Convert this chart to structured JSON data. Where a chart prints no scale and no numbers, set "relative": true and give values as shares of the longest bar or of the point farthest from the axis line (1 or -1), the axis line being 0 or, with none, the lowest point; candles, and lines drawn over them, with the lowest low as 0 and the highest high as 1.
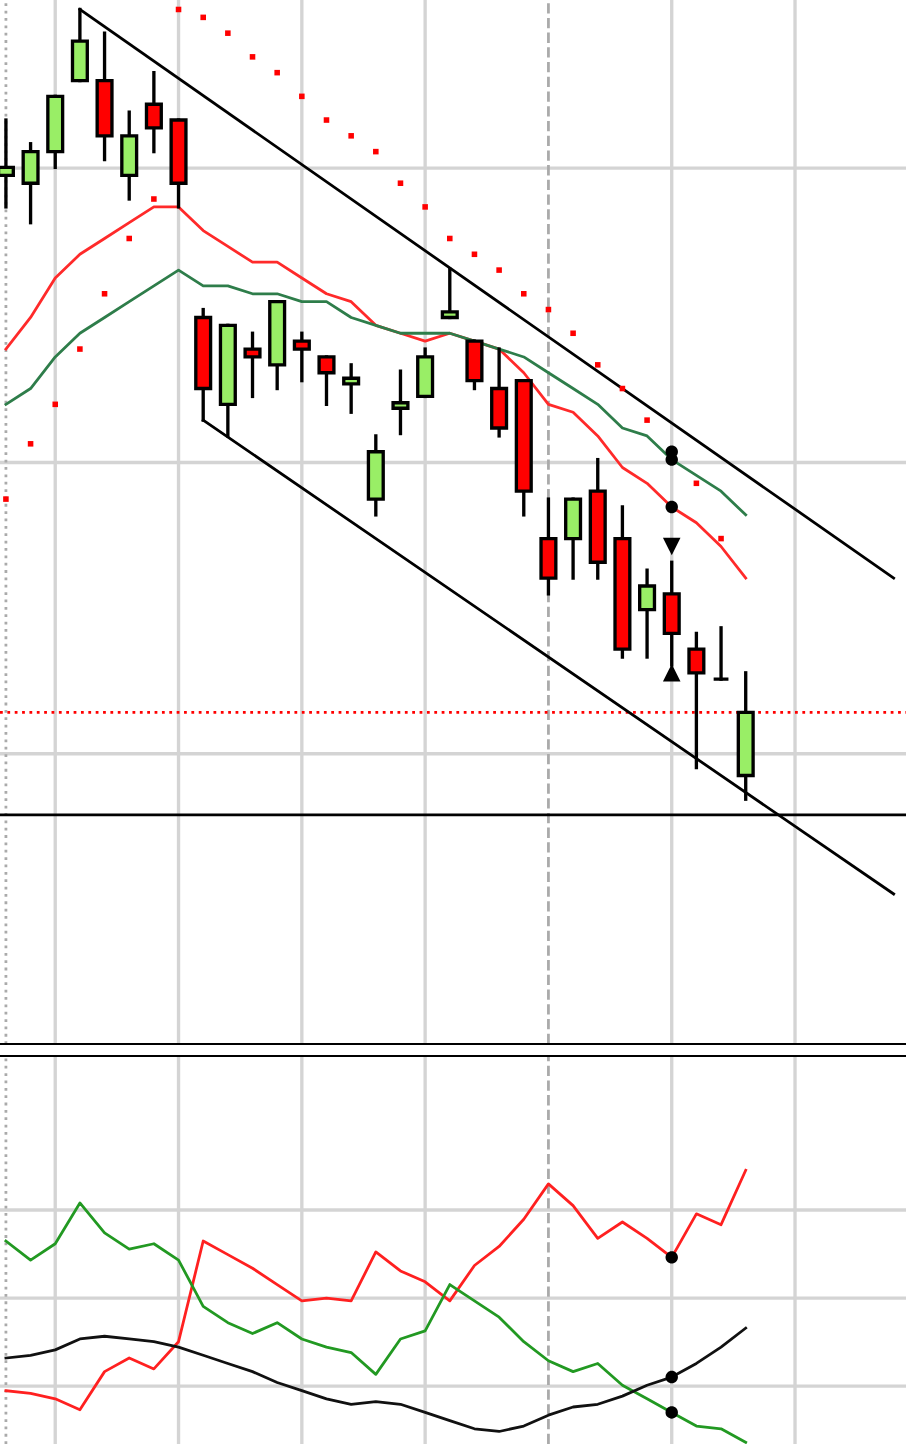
{
  "chart_data": [
    {
      "type": "candlestick",
      "relative": true,
      "grid": true,
      "categories": [
        null,
        null,
        null,
        null,
        null,
        null,
        null,
        null,
        null,
        null,
        null,
        null,
        null,
        null,
        null,
        null,
        null,
        null,
        null,
        null,
        null,
        null,
        null,
        null,
        null,
        null,
        null,
        null,
        null,
        null,
        null,
        null,
        null,
        null,
        null,
        null,
        null
      ],
      "ohlc": [
        [
          0.79,
          0.86,
          0.75,
          0.8
        ],
        [
          0.78,
          0.83,
          0.73,
          0.82
        ],
        [
          0.82,
          0.89,
          0.8,
          0.89
        ],
        [
          0.91,
          1.0,
          0.91,
          0.96
        ],
        [
          0.91,
          0.97,
          0.81,
          0.84
        ],
        [
          0.79,
          0.87,
          0.76,
          0.84
        ],
        [
          0.88,
          0.92,
          0.82,
          0.85
        ],
        [
          0.86,
          0.86,
          0.75,
          0.78
        ],
        [
          0.61,
          0.62,
          0.48,
          0.52
        ],
        [
          0.5,
          0.6,
          0.46,
          0.6
        ],
        [
          0.57,
          0.59,
          0.51,
          0.56
        ],
        [
          0.55,
          0.63,
          0.52,
          0.63
        ],
        [
          0.58,
          0.59,
          0.53,
          0.57
        ],
        [
          0.56,
          0.56,
          0.5,
          0.54
        ],
        [
          0.526,
          0.55,
          0.49,
          0.533
        ],
        [
          0.38,
          0.46,
          0.36,
          0.44
        ],
        [
          0.495,
          0.542,
          0.463,
          0.502
        ],
        [
          0.51,
          0.57,
          0.51,
          0.56
        ],
        [
          0.61,
          0.671,
          0.61,
          0.617
        ],
        [
          0.58,
          0.58,
          0.52,
          0.53
        ],
        [
          0.52,
          0.57,
          0.46,
          0.47
        ],
        [
          0.53,
          0.53,
          0.36,
          0.39
        ],
        [
          0.33,
          0.38,
          0.26,
          0.28
        ],
        [
          0.33,
          0.38,
          0.28,
          0.38
        ],
        [
          0.39,
          0.43,
          0.28,
          0.3
        ],
        [
          0.33,
          0.37,
          0.18,
          0.19
        ],
        [
          0.24,
          0.29,
          0.18,
          0.27
        ],
        [
          0.26,
          0.3,
          0.17,
          0.21
        ],
        [
          0.19,
          0.21,
          0.04,
          0.16
        ],
        [
          0.152,
          0.217,
          0.152,
          0.152
        ],
        [
          0.03,
          0.16,
          0.0,
          0.11
        ],
        null,
        null,
        null,
        null,
        null,
        null
      ],
      "colors": [
        "#99ee66",
        "#99ee66",
        "#99ee66",
        "#99ee66",
        "#ff0000",
        "#99ee66",
        "#ff0000",
        "#ff0000",
        "#ff0000",
        "#99ee66",
        "#ff0000",
        "#99ee66",
        "#ff0000",
        "#ff0000",
        "#99ee66",
        "#99ee66",
        "#99ee66",
        "#99ee66",
        "#99ee66",
        "#ff0000",
        "#ff0000",
        "#ff0000",
        "#ff0000",
        "#99ee66",
        "#ff0000",
        "#ff0000",
        "#99ee66",
        "#ff0000",
        "#ff0000",
        "#000000",
        "#99ee66",
        null,
        null,
        null,
        null,
        null,
        null
      ],
      "series": [
        {
          "type": "line",
          "color": "#ff2a2a",
          "values": [
            0.57,
            0.61,
            0.66,
            0.69,
            0.71,
            0.73,
            0.75,
            0.75,
            0.72,
            0.7,
            0.68,
            0.68,
            0.66,
            0.64,
            0.63,
            0.6,
            0.59,
            0.58,
            0.59,
            0.58,
            0.57,
            0.54,
            0.5,
            0.49,
            0.46,
            0.42,
            0.4,
            0.37,
            0.35,
            0.32,
            0.28,
            null,
            null,
            null,
            null,
            null,
            null
          ]
        },
        {
          "type": "line",
          "color": "#2e7d4a",
          "values": [
            0.5,
            0.52,
            0.56,
            0.59,
            0.61,
            0.63,
            0.65,
            0.67,
            0.65,
            0.65,
            0.64,
            0.64,
            0.63,
            0.63,
            0.61,
            0.6,
            0.59,
            0.59,
            0.59,
            0.58,
            0.57,
            0.56,
            0.54,
            0.52,
            0.5,
            0.47,
            0.46,
            0.43,
            0.41,
            0.39,
            0.36,
            null,
            null,
            null,
            null,
            null,
            null
          ]
        },
        {
          "type": "scatter",
          "color": "#ff0000",
          "marker": "square",
          "values": [
            0.38,
            0.45,
            0.5,
            0.57,
            0.64,
            0.71,
            0.76,
            1.0,
            0.99,
            0.97,
            0.94,
            0.92,
            0.89,
            0.86,
            0.84,
            0.82,
            0.78,
            0.75,
            0.71,
            0.69,
            0.67,
            0.64,
            0.62,
            0.59,
            0.55,
            0.52,
            0.48,
            null,
            0.4,
            0.33,
            null,
            null,
            null,
            null,
            null,
            null,
            null
          ]
        },
        {
          "type": "scatter",
          "color": "#000000",
          "marker": "circle",
          "values": [
            null,
            null,
            null,
            null,
            null,
            null,
            null,
            null,
            null,
            null,
            null,
            null,
            null,
            null,
            null,
            null,
            null,
            null,
            null,
            null,
            null,
            null,
            null,
            null,
            null,
            null,
            null,
            0.44,
            null,
            null,
            null,
            null,
            null,
            null,
            null,
            null,
            null
          ]
        },
        {
          "type": "scatter",
          "color": "#000000",
          "marker": "circle",
          "values": [
            null,
            null,
            null,
            null,
            null,
            null,
            null,
            null,
            null,
            null,
            null,
            null,
            null,
            null,
            null,
            null,
            null,
            null,
            null,
            null,
            null,
            null,
            null,
            null,
            null,
            null,
            null,
            0.43,
            null,
            null,
            null,
            null,
            null,
            null,
            null,
            null,
            null
          ]
        },
        {
          "type": "scatter",
          "color": "#000000",
          "marker": "circle",
          "values": [
            null,
            null,
            null,
            null,
            null,
            null,
            null,
            null,
            null,
            null,
            null,
            null,
            null,
            null,
            null,
            null,
            null,
            null,
            null,
            null,
            null,
            null,
            null,
            null,
            null,
            null,
            null,
            0.37,
            null,
            null,
            null,
            null,
            null,
            null,
            null,
            null,
            null
          ]
        },
        {
          "type": "scatter",
          "color": "#000000",
          "marker": "triangle_down",
          "values": [
            null,
            null,
            null,
            null,
            null,
            null,
            null,
            null,
            null,
            null,
            null,
            null,
            null,
            null,
            null,
            null,
            null,
            null,
            null,
            null,
            null,
            null,
            null,
            null,
            null,
            null,
            null,
            0.32,
            null,
            null,
            null,
            null,
            null,
            null,
            null,
            null,
            null
          ]
        },
        {
          "type": "scatter",
          "color": "#000000",
          "marker": "triangle",
          "values": [
            null,
            null,
            null,
            null,
            null,
            null,
            null,
            null,
            null,
            null,
            null,
            null,
            null,
            null,
            null,
            null,
            null,
            null,
            null,
            null,
            null,
            null,
            null,
            null,
            null,
            null,
            null,
            0.16,
            null,
            null,
            null,
            null,
            null,
            null,
            null,
            null,
            null
          ]
        },
        {
          "type": "line",
          "color": "#000000",
          "values": [
            null,
            null,
            null,
            1.0,
            null,
            null,
            null,
            null,
            null,
            null,
            null,
            null,
            null,
            null,
            null,
            null,
            null,
            null,
            null,
            null,
            null,
            null,
            null,
            null,
            null,
            null,
            null,
            null,
            null,
            null,
            null,
            null,
            null,
            null,
            null,
            null,
            0.28
          ]
        },
        {
          "type": "line",
          "color": "#000000",
          "values": [
            null,
            null,
            null,
            null,
            null,
            null,
            null,
            null,
            0.48,
            null,
            null,
            null,
            null,
            null,
            null,
            null,
            null,
            null,
            null,
            null,
            null,
            null,
            null,
            null,
            null,
            null,
            null,
            null,
            null,
            null,
            null,
            null,
            null,
            null,
            null,
            null,
            -0.12
          ]
        }
      ],
      "ref_lines": [
        {
          "axis": "y",
          "value": 0.11,
          "color": "#ff0000",
          "line_style": "dotted"
        },
        {
          "axis": "y",
          "value": -0.02,
          "color": "#000000",
          "line_style": "solid"
        }
      ]
    },
    {
      "type": "line",
      "relative": true,
      "grid": true,
      "categories": [
        null,
        null,
        null,
        null,
        null,
        null,
        null,
        null,
        null,
        null,
        null,
        null,
        null,
        null,
        null,
        null,
        null,
        null,
        null,
        null,
        null,
        null,
        null,
        null,
        null,
        null,
        null,
        null,
        null,
        null,
        null,
        null,
        null,
        null,
        null,
        null,
        null
      ],
      "series": [
        {
          "color": "#ff2020",
          "values": [
            0.19,
            0.18,
            0.16,
            0.12,
            0.26,
            0.31,
            0.27,
            0.37,
            0.74,
            0.69,
            0.64,
            0.58,
            0.52,
            0.53,
            0.52,
            0.7,
            0.63,
            0.59,
            0.52,
            0.65,
            0.72,
            0.82,
            0.95,
            0.87,
            0.75,
            0.81,
            0.75,
            0.68,
            0.84,
            0.8,
            1.0,
            null,
            null,
            null,
            null,
            null,
            null
          ]
        },
        {
          "color": "#229922",
          "values": [
            0.74,
            0.67,
            0.73,
            0.88,
            0.77,
            0.71,
            0.73,
            0.67,
            0.5,
            0.44,
            0.4,
            0.44,
            0.38,
            0.35,
            0.33,
            0.25,
            0.38,
            0.41,
            0.58,
            0.52,
            0.46,
            0.37,
            0.3,
            0.26,
            0.29,
            0.21,
            0.16,
            0.11,
            0.06,
            0.05,
            0.0,
            null,
            null,
            null,
            null,
            null,
            null
          ]
        },
        {
          "color": "#111111",
          "values": [
            0.31,
            0.32,
            0.34,
            0.38,
            0.39,
            0.38,
            0.37,
            0.35,
            0.32,
            0.29,
            0.26,
            0.22,
            0.19,
            0.16,
            0.14,
            0.15,
            0.14,
            0.11,
            0.08,
            0.05,
            0.04,
            0.06,
            0.1,
            0.13,
            0.14,
            0.17,
            0.21,
            0.24,
            0.29,
            0.35,
            0.42,
            null,
            null,
            null,
            null,
            null,
            null
          ]
        },
        {
          "type": "scatter",
          "color": "#000000",
          "marker": "circle",
          "values": [
            null,
            null,
            null,
            null,
            null,
            null,
            null,
            null,
            null,
            null,
            null,
            null,
            null,
            null,
            null,
            null,
            null,
            null,
            null,
            null,
            null,
            null,
            null,
            null,
            null,
            null,
            null,
            0.68,
            null,
            null,
            null,
            null,
            null,
            null,
            null,
            null,
            null
          ]
        },
        {
          "type": "scatter",
          "color": "#000000",
          "marker": "circle",
          "values": [
            null,
            null,
            null,
            null,
            null,
            null,
            null,
            null,
            null,
            null,
            null,
            null,
            null,
            null,
            null,
            null,
            null,
            null,
            null,
            null,
            null,
            null,
            null,
            null,
            null,
            null,
            null,
            0.24,
            null,
            null,
            null,
            null,
            null,
            null,
            null,
            null,
            null
          ]
        },
        {
          "type": "scatter",
          "color": "#000000",
          "marker": "circle",
          "values": [
            null,
            null,
            null,
            null,
            null,
            null,
            null,
            null,
            null,
            null,
            null,
            null,
            null,
            null,
            null,
            null,
            null,
            null,
            null,
            null,
            null,
            null,
            null,
            null,
            null,
            null,
            null,
            0.11,
            null,
            null,
            null,
            null,
            null,
            null,
            null,
            null,
            null
          ]
        }
      ]
    }
  ]
}
